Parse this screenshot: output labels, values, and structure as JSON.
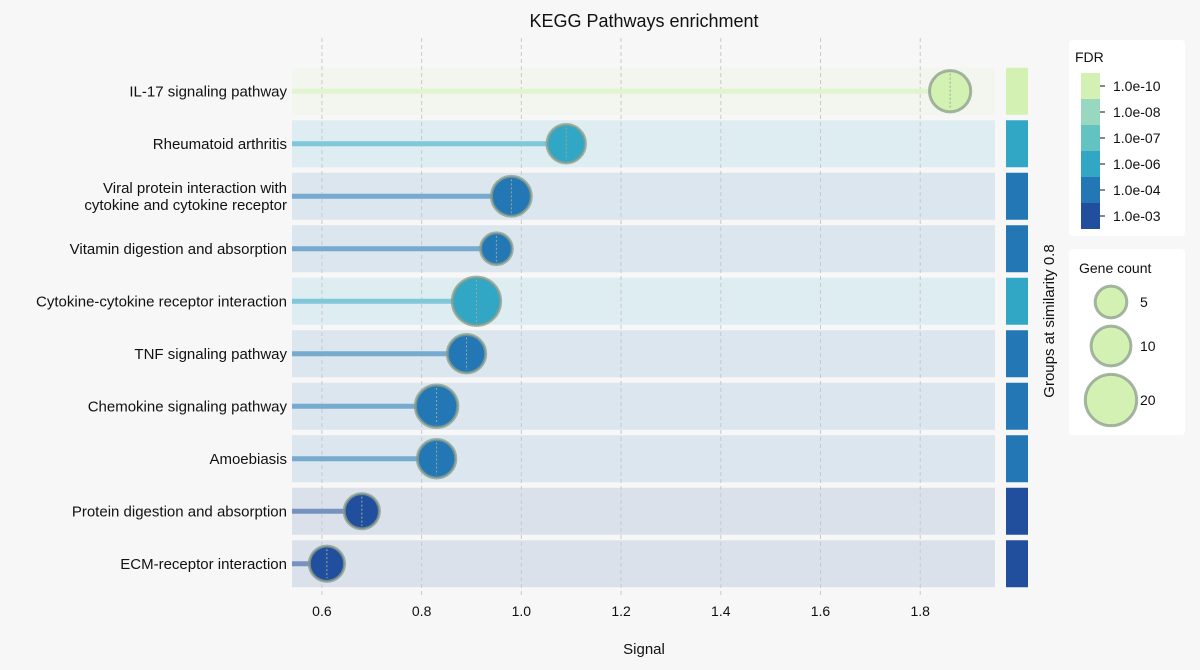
{
  "chart_data": {
    "type": "lollipop",
    "title": "KEGG Pathways enrichment",
    "xlabel": "Signal",
    "side_label": "Groups at similarity 0.8",
    "xlim": [
      0.54,
      1.95
    ],
    "xticks": [
      0.6,
      0.8,
      1.0,
      1.2,
      1.4,
      1.6,
      1.8
    ],
    "grid": "vertical dashed",
    "categories": [
      "IL-17 signaling pathway",
      "Rheumatoid arthritis",
      "Viral protein interaction with cytokine and cytokine receptor",
      "Vitamin digestion and absorption",
      "Cytokine-cytokine receptor interaction",
      "TNF signaling pathway",
      "Chemokine signaling pathway",
      "Amoebiasis",
      "Protein digestion and absorption",
      "ECM-receptor interaction"
    ],
    "label_lines": [
      [
        "IL-17 signaling pathway"
      ],
      [
        "Rheumatoid arthritis"
      ],
      [
        "Viral protein interaction with",
        "cytokine and cytokine receptor"
      ],
      [
        "Vitamin digestion and absorption"
      ],
      [
        "Cytokine-cytokine receptor interaction"
      ],
      [
        "TNF signaling pathway"
      ],
      [
        "Chemokine signaling pathway"
      ],
      [
        "Amoebiasis"
      ],
      [
        "Protein digestion and absorption"
      ],
      [
        "ECM-receptor interaction"
      ]
    ],
    "signal": [
      1.86,
      1.09,
      0.98,
      0.95,
      0.91,
      0.89,
      0.83,
      0.83,
      0.68,
      0.61
    ],
    "gene_count": [
      11,
      9,
      10,
      5,
      17,
      9,
      12,
      9,
      7,
      7
    ],
    "fdr_color": [
      "#d4f1b4",
      "#31a7c5",
      "#2277b4",
      "#2277b4",
      "#31a7c5",
      "#2277b4",
      "#2277b4",
      "#2277b4",
      "#214f9d",
      "#214f9d"
    ],
    "group_color": [
      "#d4f1b4",
      "#31a7c5",
      "#2277b4",
      "#2277b4",
      "#31a7c5",
      "#2277b4",
      "#2277b4",
      "#2277b4",
      "#214f9d",
      "#214f9d"
    ],
    "fdr_legend": {
      "title": "FDR",
      "labels": [
        "1.0e-10",
        "1.0e-08",
        "1.0e-07",
        "1.0e-06",
        "1.0e-04",
        "1.0e-03"
      ],
      "colors": [
        "#d4f1b4",
        "#99d8c0",
        "#63c2c2",
        "#31a7c5",
        "#2277b4",
        "#214f9d"
      ]
    },
    "size_legend": {
      "title": "Gene count",
      "values": [
        5,
        10,
        20
      ],
      "labels": [
        "5",
        "10",
        "20"
      ],
      "color": "#d4f1b4"
    },
    "legend_placement": "right"
  }
}
